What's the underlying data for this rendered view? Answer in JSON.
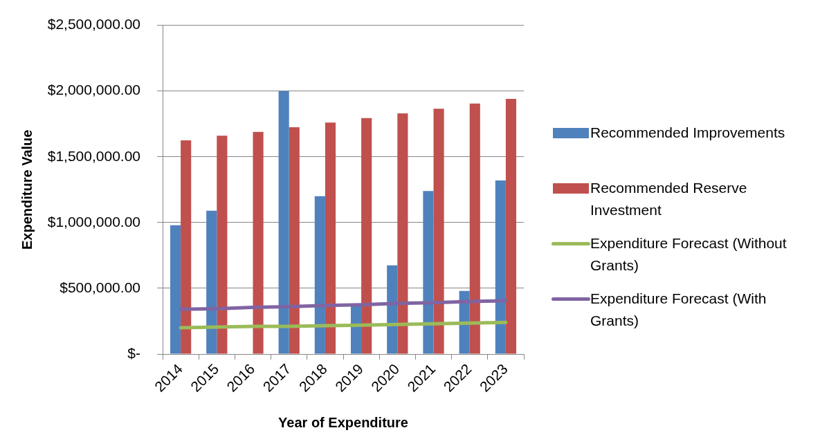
{
  "chart_data": {
    "type": "bar",
    "xlabel": "Year of Expenditure",
    "ylabel": "Expenditure Value",
    "categories": [
      "2014",
      "2015",
      "2016",
      "2017",
      "2018",
      "2019",
      "2020",
      "2021",
      "2022",
      "2023"
    ],
    "series": [
      {
        "name": "Recommended Improvements",
        "color": "#4f81bd",
        "values": [
          980000,
          1090000,
          null,
          2000000,
          1200000,
          370000,
          675000,
          1240000,
          480000,
          1320000
        ]
      },
      {
        "name": "Recommended Reserve Investment",
        "color": "#c0504d",
        "values": [
          1625000,
          1660000,
          1690000,
          1725000,
          1760000,
          1795000,
          1830000,
          1865000,
          1905000,
          1940000
        ]
      },
      {
        "name": "Expenditure Forecast (Without Grants)",
        "type": "line",
        "color": "#9bbb59",
        "values": [
          200000,
          205000,
          210000,
          210000,
          215000,
          220000,
          225000,
          230000,
          235000,
          240000
        ]
      },
      {
        "name": "Expenditure Forecast (With Grants)",
        "type": "line",
        "color": "#8064a2",
        "values": [
          340000,
          345000,
          355000,
          360000,
          370000,
          375000,
          385000,
          390000,
          400000,
          405000
        ]
      }
    ],
    "ylim": [
      0,
      2500000
    ],
    "yticks": [
      {
        "value": 0,
        "label": "$-"
      },
      {
        "value": 500000,
        "label": "$500,000.00"
      },
      {
        "value": 1000000,
        "label": "$1,000,000.00"
      },
      {
        "value": 1500000,
        "label": "$1,500,000.00"
      },
      {
        "value": 2000000,
        "label": "$2,000,000.00"
      },
      {
        "value": 2500000,
        "label": "$2,500,000.00"
      }
    ],
    "grid": "y",
    "legend": "right",
    "marker": "none",
    "line_style": "solid"
  }
}
